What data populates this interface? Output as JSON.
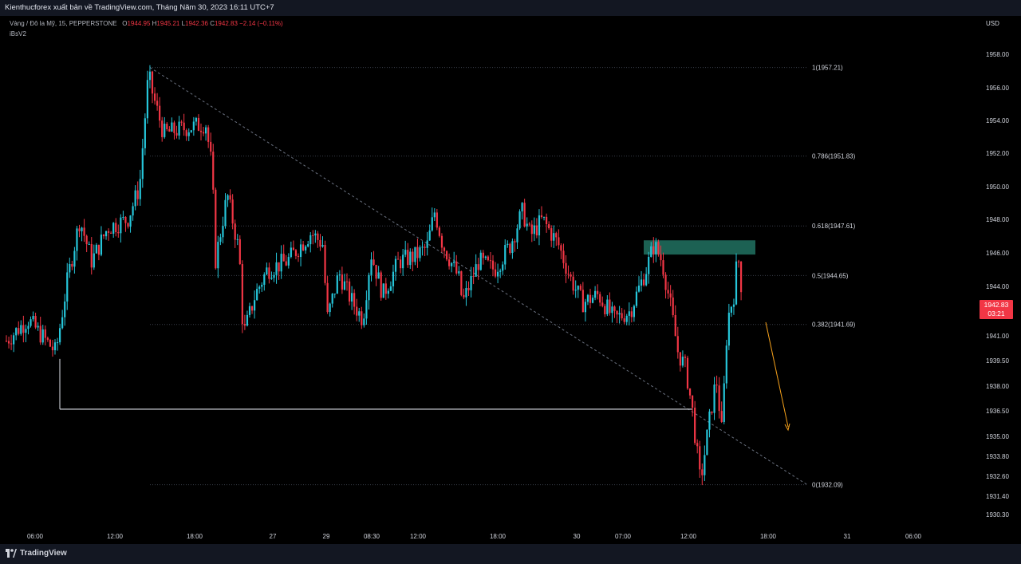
{
  "header": {
    "publish_line": "Kienthucforex xuất bản về TradingView.com, Tháng Năm 30, 2023 16:11 UTC+7"
  },
  "legend": {
    "symbol": "Vàng / Đô la Mỹ, 15, PEPPERSTONE",
    "o_label": "O",
    "o_value": "1944.95",
    "h_label": "H",
    "h_value": "1945.21",
    "l_label": "L",
    "l_value": "1942.36",
    "c_label": "C",
    "c_value": "1942.83",
    "change": "−2.14 (−0.11%)",
    "indicator": "iBsV2"
  },
  "price_axis": {
    "currency": "USD",
    "ticks": [
      {
        "price": 1958.0,
        "label": "1958.00"
      },
      {
        "price": 1956.0,
        "label": "1956.00"
      },
      {
        "price": 1954.0,
        "label": "1954.00"
      },
      {
        "price": 1952.0,
        "label": "1952.00"
      },
      {
        "price": 1950.0,
        "label": "1950.00"
      },
      {
        "price": 1948.0,
        "label": "1948.00"
      },
      {
        "price": 1946.0,
        "label": "1946.00"
      },
      {
        "price": 1944.0,
        "label": "1944.00"
      },
      {
        "price": 1941.0,
        "label": "1941.00"
      },
      {
        "price": 1939.5,
        "label": "1939.50"
      },
      {
        "price": 1938.0,
        "label": "1938.00"
      },
      {
        "price": 1936.5,
        "label": "1936.50"
      },
      {
        "price": 1935.0,
        "label": "1935.00"
      },
      {
        "price": 1933.8,
        "label": "1933.80"
      },
      {
        "price": 1932.6,
        "label": "1932.60"
      },
      {
        "price": 1931.4,
        "label": "1931.40"
      },
      {
        "price": 1930.3,
        "label": "1930.30"
      }
    ],
    "current_price": "1942.83",
    "countdown": "03:21",
    "current_price_color": "#f23645"
  },
  "time_axis": {
    "ticks": [
      "06:00",
      "12:00",
      "18:00",
      "27",
      "29",
      "08:30",
      "12:00",
      "18:00",
      "30",
      "07:00",
      "12:00",
      "18:00",
      "31",
      "06:00"
    ]
  },
  "fibonacci": {
    "levels": [
      {
        "ratio": "1",
        "price": 1957.21,
        "label": "1(1957.21)"
      },
      {
        "ratio": "0.786",
        "price": 1951.83,
        "label": "0.786(1951.83)"
      },
      {
        "ratio": "0.618",
        "price": 1947.61,
        "label": "0.618(1947.61)"
      },
      {
        "ratio": "0.5",
        "price": 1944.65,
        "label": "0.5(1944.65)"
      },
      {
        "ratio": "0.382",
        "price": 1941.69,
        "label": "0.382(1941.69)"
      },
      {
        "ratio": "0",
        "price": 1932.09,
        "label": "0(1932.09)"
      }
    ]
  },
  "drawings": {
    "support_line_price": 1936.6,
    "supply_zone": {
      "top": 1946.75,
      "bottom": 1945.9,
      "color": "#1f6b5c"
    },
    "arrow_color": "#f7a21b"
  },
  "colors": {
    "up": "#26c6da",
    "down": "#f23645",
    "grid_dotted": "#3a3e4a"
  },
  "branding": {
    "label": "TradingView"
  }
}
